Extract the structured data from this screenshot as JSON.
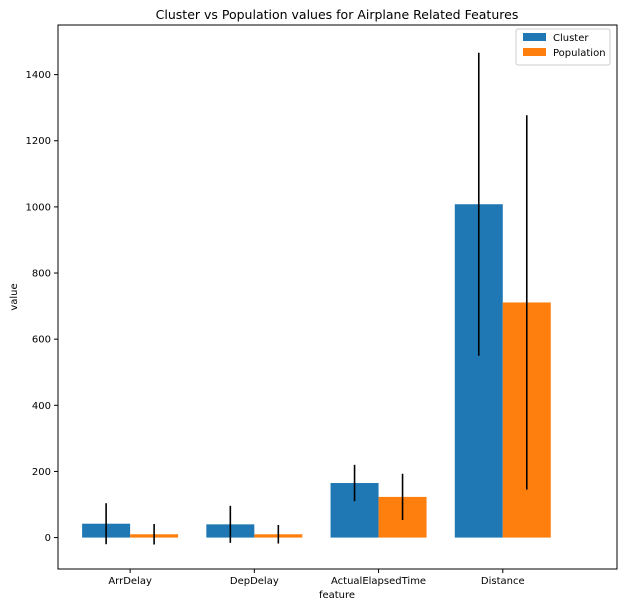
{
  "chart_data": {
    "type": "bar",
    "title": "Cluster vs Population values for Airplane Related Features",
    "xlabel": "feature",
    "ylabel": "value",
    "categories": [
      "ArrDelay",
      "DepDelay",
      "ActualElapsedTime",
      "Distance"
    ],
    "ylim": [
      -95,
      1550
    ],
    "yticks": [
      0,
      200,
      400,
      600,
      800,
      1000,
      1200,
      1400
    ],
    "grid": false,
    "legend_position": "top-right",
    "series": [
      {
        "name": "Cluster",
        "color": "#1f77b4",
        "values": [
          42,
          40,
          165,
          1008
        ],
        "errors": [
          62,
          56,
          55,
          458
        ]
      },
      {
        "name": "Population",
        "color": "#ff7f0e",
        "values": [
          10,
          10,
          123,
          711
        ],
        "errors": [
          31,
          28,
          70,
          566
        ]
      }
    ]
  }
}
